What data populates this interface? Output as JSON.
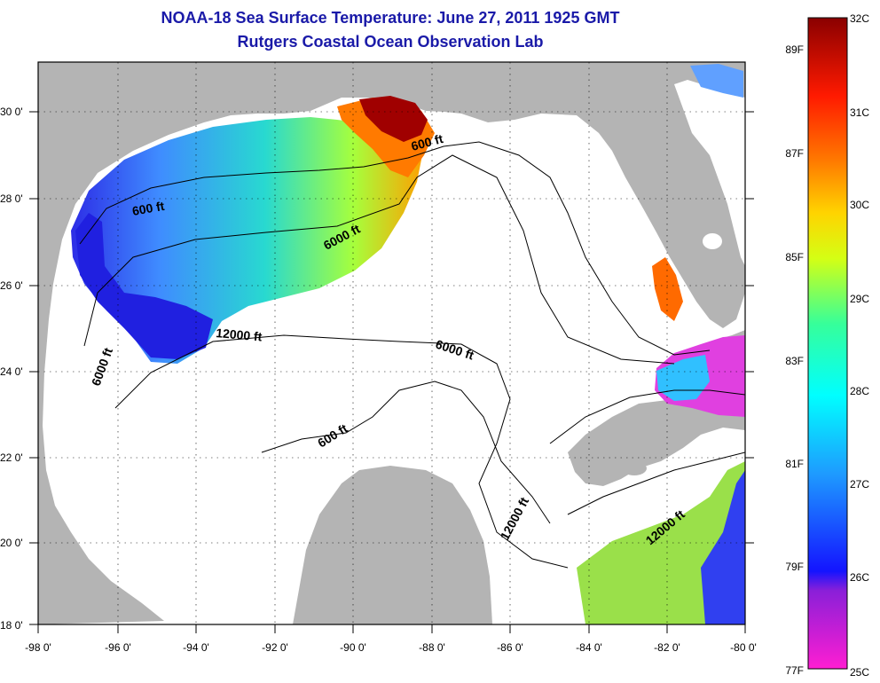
{
  "title": "NOAA-18 Sea Surface Temperature:  June 27, 2011 1925 GMT",
  "subtitle": "Rutgers Coastal Ocean Observation Lab",
  "colors": {
    "land": "#b4b4b4",
    "water": "#ffffff",
    "title": "#1a1aa8"
  },
  "map": {
    "lon_range": [
      -98,
      -80
    ],
    "lat_range": [
      18,
      31
    ],
    "x_ticks": [
      "-98 0'",
      "-96 0'",
      "-94 0'",
      "-92 0'",
      "-90 0'",
      "-88 0'",
      "-86 0'",
      "-84 0'",
      "-82 0'",
      "-80 0'"
    ],
    "y_ticks": [
      "18 0'",
      "20 0'",
      "22 0'",
      "24 0'",
      "26 0'",
      "28 0'",
      "30 0'"
    ],
    "contour_labels": [
      "600 ft",
      "600 ft",
      "6000 ft",
      "6000 ft",
      "6000 ft",
      "12000 ft",
      "600 ft",
      "12000 ft",
      "12000 ft"
    ]
  },
  "colorbar": {
    "range_c": [
      25,
      32
    ],
    "celsius_labels": [
      "32C",
      "31C",
      "30C",
      "29C",
      "28C",
      "27C",
      "26C",
      "25C"
    ],
    "fahrenheit_labels": [
      "89F",
      "87F",
      "85F",
      "83F",
      "81F",
      "79F",
      "77F"
    ]
  }
}
